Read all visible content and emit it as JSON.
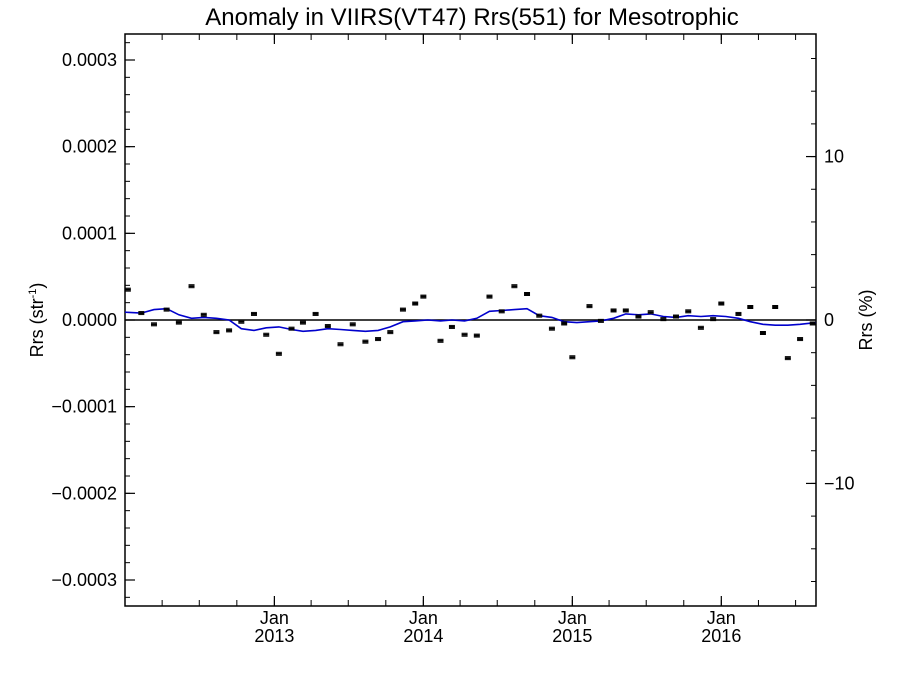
{
  "chart_data": {
    "type": "scatter",
    "title": "Anomaly in VIIRS(VT47) Rrs(551) for Mesotrophic",
    "ylabel": "Rrs (str",
    "ylabel_exponent": "-1",
    "ylabel_suffix": ")",
    "y2label": "Rrs (%)",
    "xlim": [
      "2012-01-01",
      "2016-08-20"
    ],
    "ylim": [
      -0.00033,
      0.00033
    ],
    "y2lim": [
      -17.5,
      17.5
    ],
    "yticks": [
      {
        "value": 0.0003,
        "label": "0.0003"
      },
      {
        "value": 0.0002,
        "label": "0.0002"
      },
      {
        "value": 0.0001,
        "label": "0.0001"
      },
      {
        "value": 0.0,
        "label": "0.0000"
      },
      {
        "value": -0.0001,
        "label": "−0.0001"
      },
      {
        "value": -0.0002,
        "label": "−0.0002"
      },
      {
        "value": -0.0003,
        "label": "−0.0003"
      }
    ],
    "y2ticks": [
      {
        "value": 10,
        "label": "10"
      },
      {
        "value": 0,
        "label": "0"
      },
      {
        "value": -10,
        "label": "−10"
      }
    ],
    "xticks": [
      {
        "date": "2013-01-01",
        "month": "Jan",
        "year": "2013"
      },
      {
        "date": "2014-01-01",
        "month": "Jan",
        "year": "2014"
      },
      {
        "date": "2015-01-01",
        "month": "Jan",
        "year": "2015"
      },
      {
        "date": "2016-01-01",
        "month": "Jan",
        "year": "2016"
      }
    ],
    "zero_line": 0,
    "series": [
      {
        "type": "scatter",
        "color": "#000000",
        "points": [
          {
            "x": "2012-01-08",
            "y": 3.5e-05
          },
          {
            "x": "2012-02-10",
            "y": 8e-06
          },
          {
            "x": "2012-03-12",
            "y": -5e-06
          },
          {
            "x": "2012-04-12",
            "y": 1.2e-05
          },
          {
            "x": "2012-05-12",
            "y": -3e-06
          },
          {
            "x": "2012-06-12",
            "y": 3.9e-05
          },
          {
            "x": "2012-07-12",
            "y": 6e-06
          },
          {
            "x": "2012-08-12",
            "y": -1.4e-05
          },
          {
            "x": "2012-09-12",
            "y": -1.2e-05
          },
          {
            "x": "2012-10-12",
            "y": -2e-06
          },
          {
            "x": "2012-11-12",
            "y": 7e-06
          },
          {
            "x": "2012-12-12",
            "y": -1.7e-05
          },
          {
            "x": "2013-01-12",
            "y": -3.9e-05
          },
          {
            "x": "2013-02-12",
            "y": -1e-05
          },
          {
            "x": "2013-03-12",
            "y": -3e-06
          },
          {
            "x": "2013-04-12",
            "y": 7e-06
          },
          {
            "x": "2013-05-12",
            "y": -7e-06
          },
          {
            "x": "2013-06-12",
            "y": -2.8e-05
          },
          {
            "x": "2013-07-12",
            "y": -5e-06
          },
          {
            "x": "2013-08-12",
            "y": -2.5e-05
          },
          {
            "x": "2013-09-12",
            "y": -2.2e-05
          },
          {
            "x": "2013-10-12",
            "y": -1.4e-05
          },
          {
            "x": "2013-11-12",
            "y": 1.2e-05
          },
          {
            "x": "2013-12-12",
            "y": 1.9e-05
          },
          {
            "x": "2014-01-01",
            "y": 2.7e-05
          },
          {
            "x": "2014-02-12",
            "y": -2.4e-05
          },
          {
            "x": "2014-03-12",
            "y": -8e-06
          },
          {
            "x": "2014-04-12",
            "y": -1.7e-05
          },
          {
            "x": "2014-05-12",
            "y": -1.8e-05
          },
          {
            "x": "2014-06-12",
            "y": 2.7e-05
          },
          {
            "x": "2014-07-12",
            "y": 1e-05
          },
          {
            "x": "2014-08-12",
            "y": 3.9e-05
          },
          {
            "x": "2014-09-12",
            "y": 3e-05
          },
          {
            "x": "2014-10-12",
            "y": 5e-06
          },
          {
            "x": "2014-11-12",
            "y": -1e-05
          },
          {
            "x": "2014-12-12",
            "y": -4e-06
          },
          {
            "x": "2015-01-01",
            "y": -4.3e-05
          },
          {
            "x": "2015-02-12",
            "y": 1.6e-05
          },
          {
            "x": "2015-03-12",
            "y": -1e-06
          },
          {
            "x": "2015-04-12",
            "y": 1.1e-05
          },
          {
            "x": "2015-05-12",
            "y": 1.1e-05
          },
          {
            "x": "2015-06-12",
            "y": 4e-06
          },
          {
            "x": "2015-07-12",
            "y": 9e-06
          },
          {
            "x": "2015-08-12",
            "y": 1e-06
          },
          {
            "x": "2015-09-12",
            "y": 4e-06
          },
          {
            "x": "2015-10-12",
            "y": 1e-05
          },
          {
            "x": "2015-11-12",
            "y": -9e-06
          },
          {
            "x": "2015-12-12",
            "y": 1e-06
          },
          {
            "x": "2016-01-01",
            "y": 1.9e-05
          },
          {
            "x": "2016-02-12",
            "y": 7e-06
          },
          {
            "x": "2016-03-12",
            "y": 1.5e-05
          },
          {
            "x": "2016-04-12",
            "y": -1.5e-05
          },
          {
            "x": "2016-05-12",
            "y": 1.5e-05
          },
          {
            "x": "2016-06-12",
            "y": -4.4e-05
          },
          {
            "x": "2016-07-12",
            "y": -2.2e-05
          },
          {
            "x": "2016-08-12",
            "y": -4e-06
          }
        ]
      },
      {
        "type": "line",
        "color": "#0000cc",
        "points": [
          {
            "x": "2012-01-01",
            "y": 9e-06
          },
          {
            "x": "2012-02-10",
            "y": 8e-06
          },
          {
            "x": "2012-03-12",
            "y": 1.2e-05
          },
          {
            "x": "2012-04-12",
            "y": 1.3e-05
          },
          {
            "x": "2012-05-12",
            "y": 6e-06
          },
          {
            "x": "2012-06-12",
            "y": 2e-06
          },
          {
            "x": "2012-07-12",
            "y": 3e-06
          },
          {
            "x": "2012-08-12",
            "y": 2e-06
          },
          {
            "x": "2012-09-12",
            "y": 0.0
          },
          {
            "x": "2012-10-12",
            "y": -1e-05
          },
          {
            "x": "2012-11-12",
            "y": -1.2e-05
          },
          {
            "x": "2012-12-12",
            "y": -9e-06
          },
          {
            "x": "2013-01-12",
            "y": -8e-06
          },
          {
            "x": "2013-02-12",
            "y": -1.1e-05
          },
          {
            "x": "2013-03-12",
            "y": -1.3e-05
          },
          {
            "x": "2013-04-12",
            "y": -1.2e-05
          },
          {
            "x": "2013-05-12",
            "y": -1e-05
          },
          {
            "x": "2013-06-12",
            "y": -1.1e-05
          },
          {
            "x": "2013-07-12",
            "y": -1.2e-05
          },
          {
            "x": "2013-08-12",
            "y": -1.3e-05
          },
          {
            "x": "2013-09-12",
            "y": -1.2e-05
          },
          {
            "x": "2013-10-12",
            "y": -8e-06
          },
          {
            "x": "2013-11-12",
            "y": -2e-06
          },
          {
            "x": "2013-12-12",
            "y": -1e-06
          },
          {
            "x": "2014-01-12",
            "y": 0.0
          },
          {
            "x": "2014-02-12",
            "y": -1e-06
          },
          {
            "x": "2014-03-12",
            "y": 0.0
          },
          {
            "x": "2014-04-12",
            "y": -1e-06
          },
          {
            "x": "2014-05-12",
            "y": 2e-06
          },
          {
            "x": "2014-06-12",
            "y": 1e-05
          },
          {
            "x": "2014-07-12",
            "y": 1.1e-05
          },
          {
            "x": "2014-08-12",
            "y": 1.2e-05
          },
          {
            "x": "2014-09-12",
            "y": 1.3e-05
          },
          {
            "x": "2014-10-12",
            "y": 5e-06
          },
          {
            "x": "2014-11-12",
            "y": 3e-06
          },
          {
            "x": "2014-12-12",
            "y": -2e-06
          },
          {
            "x": "2015-01-12",
            "y": -3e-06
          },
          {
            "x": "2015-02-12",
            "y": -2e-06
          },
          {
            "x": "2015-03-12",
            "y": -1e-06
          },
          {
            "x": "2015-04-12",
            "y": 2e-06
          },
          {
            "x": "2015-05-12",
            "y": 7e-06
          },
          {
            "x": "2015-06-12",
            "y": 6e-06
          },
          {
            "x": "2015-07-12",
            "y": 7e-06
          },
          {
            "x": "2015-08-12",
            "y": 4e-06
          },
          {
            "x": "2015-09-12",
            "y": 3e-06
          },
          {
            "x": "2015-10-12",
            "y": 5e-06
          },
          {
            "x": "2015-11-12",
            "y": 4e-06
          },
          {
            "x": "2015-12-12",
            "y": 5e-06
          },
          {
            "x": "2016-01-12",
            "y": 4e-06
          },
          {
            "x": "2016-02-12",
            "y": 2e-06
          },
          {
            "x": "2016-03-12",
            "y": -2e-06
          },
          {
            "x": "2016-04-12",
            "y": -5e-06
          },
          {
            "x": "2016-05-12",
            "y": -6e-06
          },
          {
            "x": "2016-06-12",
            "y": -6e-06
          },
          {
            "x": "2016-07-12",
            "y": -5e-06
          },
          {
            "x": "2016-08-20",
            "y": -3e-06
          }
        ]
      }
    ],
    "grid": false,
    "legend": "none"
  }
}
